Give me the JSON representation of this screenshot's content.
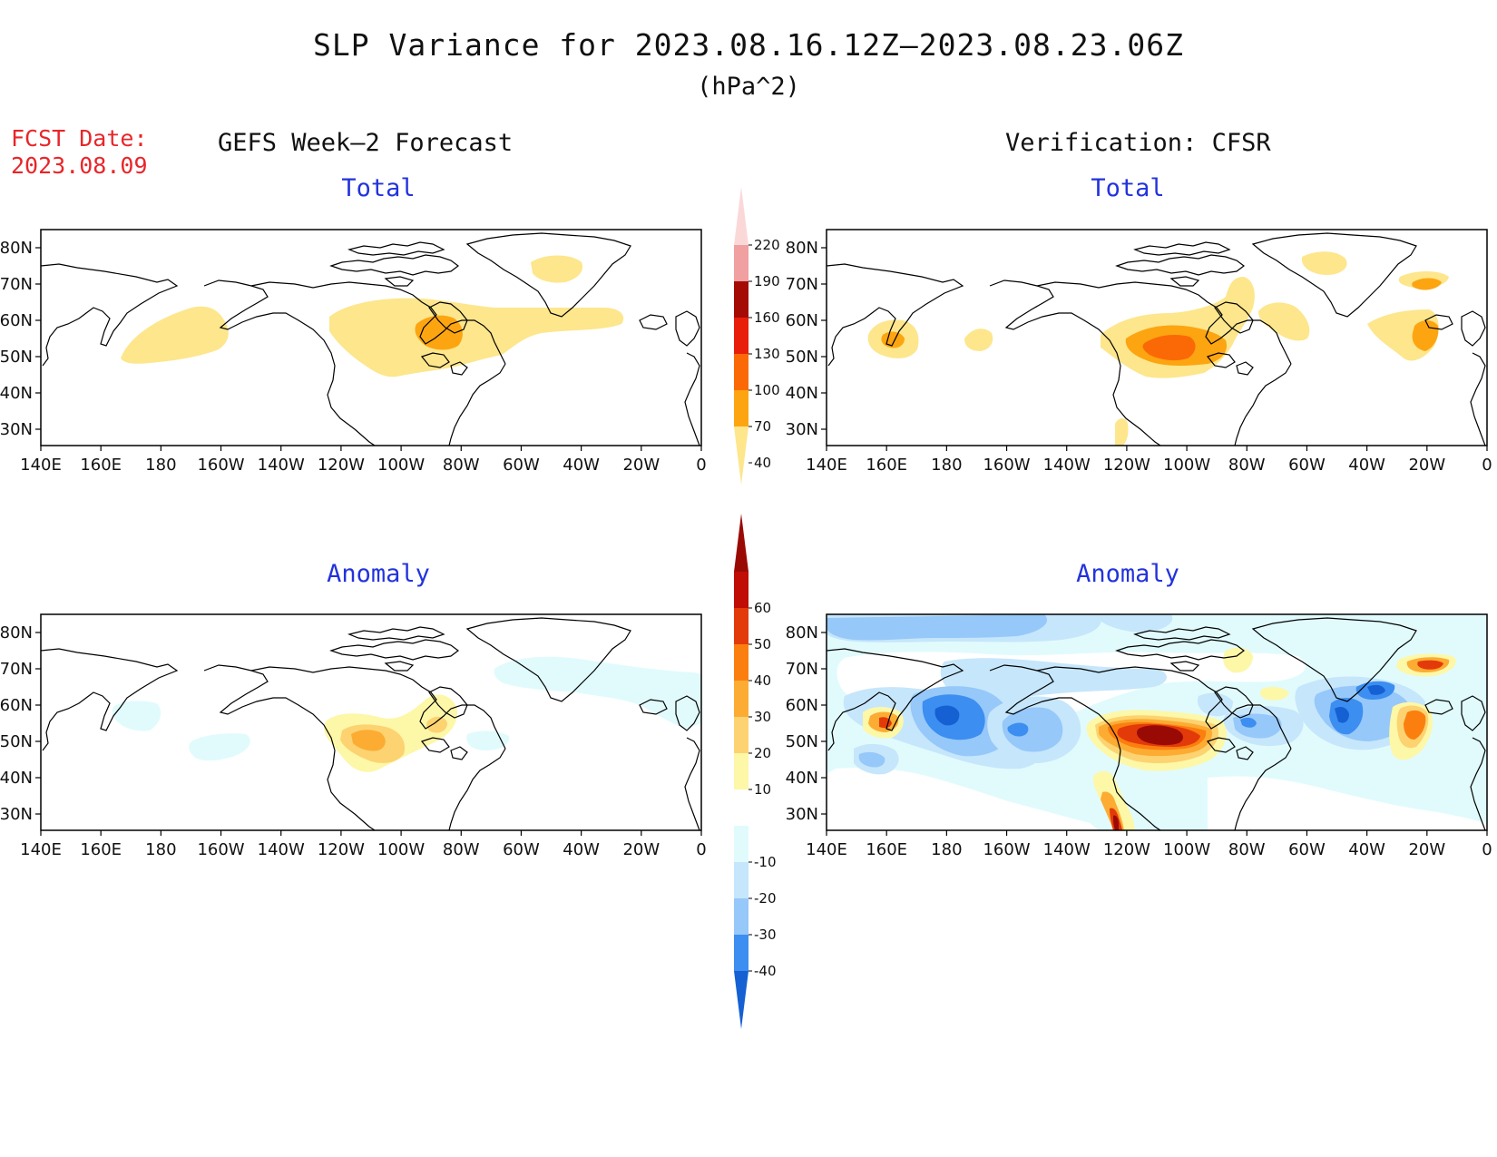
{
  "header": {
    "title": "SLP Variance for 2023.08.16.12Z—2023.08.23.06Z",
    "units": "(hPa^2)",
    "fcst_label": "FCST Date:",
    "fcst_date": "2023.08.09",
    "left_column": "GEFS Week—2 Forecast",
    "right_column": "Verification: CFSR"
  },
  "panels": {
    "forecast_total": {
      "title": "Total"
    },
    "forecast_anomaly": {
      "title": "Anomaly"
    },
    "verif_total": {
      "title": "Total"
    },
    "verif_anomaly": {
      "title": "Anomaly"
    }
  },
  "axes": {
    "lon_labels": [
      "140E",
      "160E",
      "180",
      "160W",
      "140W",
      "120W",
      "100W",
      "80W",
      "60W",
      "40W",
      "20W",
      "0"
    ],
    "lat_labels": [
      "80N",
      "70N",
      "60N",
      "50N",
      "40N",
      "30N"
    ]
  },
  "colorbars": {
    "total": {
      "levels": [
        "40",
        "70",
        "100",
        "130",
        "160",
        "190",
        "220"
      ],
      "colors": [
        "#fde68c",
        "#fca511",
        "#fb6906",
        "#e81e0a",
        "#a50b05",
        "#f0a0a0",
        "#fbd8d8"
      ]
    },
    "anomaly": {
      "levels": [
        "-40",
        "-30",
        "-20",
        "-10",
        "10",
        "20",
        "30",
        "40",
        "50",
        "60"
      ],
      "colors": [
        "#1560d3",
        "#3c8ef0",
        "#96c8f9",
        "#c6e6fb",
        "#e1fbfd",
        "#ffffff",
        "#fdf7a8",
        "#fcd370",
        "#fcac32",
        "#fb7f0f",
        "#e33a0a",
        "#c00d05",
        "#9a0a05"
      ]
    }
  },
  "palette": {
    "t40": "#fde68c",
    "t70": "#fca511",
    "t100": "#fb6906",
    "t130": "#e81e0a",
    "t160": "#a50b05",
    "a_neg40": "#1560d3",
    "a_neg30": "#3c8ef0",
    "a_neg20": "#96c8f9",
    "a_neg10": "#c6e6fb",
    "a_neg0": "#e1fbfd",
    "a_p10": "#fdf7a8",
    "a_p20": "#fcd370",
    "a_p30": "#fcac32",
    "a_p40": "#fb7f0f",
    "a_p50": "#e33a0a",
    "a_p60": "#9a0a05"
  }
}
